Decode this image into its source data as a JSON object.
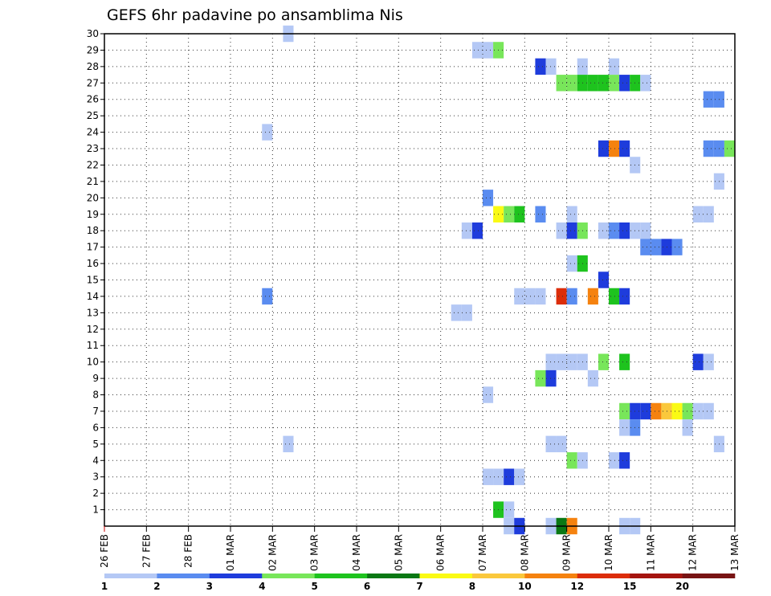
{
  "chart_data": {
    "type": "heatmap",
    "title": "GEFS 6hr padavine po ansamblima Nis",
    "xlabel": "",
    "ylabel": "",
    "x_ticks": [
      "26 FEB",
      "27 FEB",
      "28 FEB",
      "01 MAR",
      "02 MAR",
      "03 MAR",
      "04 MAR",
      "05 MAR",
      "06 MAR",
      "07 MAR",
      "08 MAR",
      "09 MAR",
      "10 MAR",
      "11 MAR",
      "12 MAR",
      "13 MAR"
    ],
    "y_ticks": [
      "1",
      "2",
      "3",
      "4",
      "5",
      "6",
      "7",
      "8",
      "9",
      "10",
      "11",
      "12",
      "13",
      "14",
      "15",
      "16",
      "17",
      "18",
      "19",
      "20",
      "21",
      "22",
      "23",
      "24",
      "25",
      "26",
      "27",
      "28",
      "29",
      "30"
    ],
    "x_range_days": [
      0,
      15
    ],
    "y_range": [
      0,
      30
    ],
    "grid": true,
    "colorbar": {
      "bounds": [
        "1",
        "2",
        "3",
        "4",
        "5",
        "6",
        "7",
        "8",
        "10",
        "12",
        "15",
        "20"
      ],
      "colors": [
        "#b4c8f5",
        "#5a8cf0",
        "#1e3cdc",
        "#78e65a",
        "#1ec31e",
        "#0a7814",
        "#fafa14",
        "#fac83c",
        "#f5820f",
        "#dc2d0a",
        "#a5140f",
        "#781414"
      ]
    },
    "cells": [
      {
        "member": 30,
        "day": 4.25,
        "level": 1
      },
      {
        "member": 29,
        "day": 8.75,
        "level": 1
      },
      {
        "member": 29,
        "day": 9,
        "level": 1
      },
      {
        "member": 29,
        "day": 9.25,
        "level": 4
      },
      {
        "member": 28,
        "day": 10.25,
        "level": 3
      },
      {
        "member": 28,
        "day": 10.5,
        "level": 1
      },
      {
        "member": 28,
        "day": 11.25,
        "level": 1
      },
      {
        "member": 28,
        "day": 12,
        "level": 1
      },
      {
        "member": 27,
        "day": 10.75,
        "level": 4
      },
      {
        "member": 27,
        "day": 11,
        "level": 4
      },
      {
        "member": 27,
        "day": 11.25,
        "level": 5
      },
      {
        "member": 27,
        "day": 11.5,
        "level": 5
      },
      {
        "member": 27,
        "day": 11.75,
        "level": 5
      },
      {
        "member": 27,
        "day": 12,
        "level": 4
      },
      {
        "member": 27,
        "day": 12.25,
        "level": 3
      },
      {
        "member": 27,
        "day": 12.5,
        "level": 5
      },
      {
        "member": 27,
        "day": 12.75,
        "level": 1
      },
      {
        "member": 26,
        "day": 14.25,
        "level": 2
      },
      {
        "member": 26,
        "day": 14.5,
        "level": 2
      },
      {
        "member": 24,
        "day": 3.75,
        "level": 1
      },
      {
        "member": 23,
        "day": 11.75,
        "level": 3
      },
      {
        "member": 23,
        "day": 12,
        "level": 9
      },
      {
        "member": 23,
        "day": 12.25,
        "level": 3
      },
      {
        "member": 23,
        "day": 14.25,
        "level": 2
      },
      {
        "member": 23,
        "day": 14.5,
        "level": 2
      },
      {
        "member": 23,
        "day": 14.75,
        "level": 4
      },
      {
        "member": 22,
        "day": 12.5,
        "level": 1
      },
      {
        "member": 21,
        "day": 14.5,
        "level": 1
      },
      {
        "member": 20,
        "day": 9,
        "level": 2
      },
      {
        "member": 19,
        "day": 9.25,
        "level": 7
      },
      {
        "member": 19,
        "day": 9.5,
        "level": 4
      },
      {
        "member": 19,
        "day": 9.75,
        "level": 5
      },
      {
        "member": 19,
        "day": 10.25,
        "level": 2
      },
      {
        "member": 19,
        "day": 11,
        "level": 1
      },
      {
        "member": 19,
        "day": 14,
        "level": 1
      },
      {
        "member": 19,
        "day": 14.25,
        "level": 1
      },
      {
        "member": 18,
        "day": 8.5,
        "level": 1
      },
      {
        "member": 18,
        "day": 8.75,
        "level": 3
      },
      {
        "member": 18,
        "day": 10.75,
        "level": 1
      },
      {
        "member": 18,
        "day": 11,
        "level": 3
      },
      {
        "member": 18,
        "day": 11.25,
        "level": 4
      },
      {
        "member": 18,
        "day": 11.75,
        "level": 1
      },
      {
        "member": 18,
        "day": 12,
        "level": 2
      },
      {
        "member": 18,
        "day": 12.25,
        "level": 3
      },
      {
        "member": 18,
        "day": 12.5,
        "level": 1
      },
      {
        "member": 18,
        "day": 12.75,
        "level": 1
      },
      {
        "member": 17,
        "day": 12.75,
        "level": 2
      },
      {
        "member": 17,
        "day": 13,
        "level": 2
      },
      {
        "member": 17,
        "day": 13.25,
        "level": 3
      },
      {
        "member": 17,
        "day": 13.5,
        "level": 2
      },
      {
        "member": 16,
        "day": 11,
        "level": 1
      },
      {
        "member": 16,
        "day": 11.25,
        "level": 5
      },
      {
        "member": 15,
        "day": 11.75,
        "level": 3
      },
      {
        "member": 14,
        "day": 3.75,
        "level": 2
      },
      {
        "member": 14,
        "day": 9.75,
        "level": 1
      },
      {
        "member": 14,
        "day": 10,
        "level": 1
      },
      {
        "member": 14,
        "day": 10.25,
        "level": 1
      },
      {
        "member": 14,
        "day": 10.75,
        "level": 10
      },
      {
        "member": 14,
        "day": 11,
        "level": 2
      },
      {
        "member": 14,
        "day": 11.5,
        "level": 9
      },
      {
        "member": 14,
        "day": 12,
        "level": 5
      },
      {
        "member": 14,
        "day": 12.25,
        "level": 3
      },
      {
        "member": 13,
        "day": 8.25,
        "level": 1
      },
      {
        "member": 13,
        "day": 8.5,
        "level": 1
      },
      {
        "member": 10,
        "day": 10.5,
        "level": 1
      },
      {
        "member": 10,
        "day": 10.75,
        "level": 1
      },
      {
        "member": 10,
        "day": 11,
        "level": 1
      },
      {
        "member": 10,
        "day": 11.25,
        "level": 1
      },
      {
        "member": 10,
        "day": 11.75,
        "level": 4
      },
      {
        "member": 10,
        "day": 12.25,
        "level": 5
      },
      {
        "member": 10,
        "day": 14,
        "level": 3
      },
      {
        "member": 10,
        "day": 14.25,
        "level": 1
      },
      {
        "member": 9,
        "day": 10.25,
        "level": 4
      },
      {
        "member": 9,
        "day": 10.5,
        "level": 3
      },
      {
        "member": 9,
        "day": 11.5,
        "level": 1
      },
      {
        "member": 8,
        "day": 9,
        "level": 1
      },
      {
        "member": 7,
        "day": 12.25,
        "level": 4
      },
      {
        "member": 7,
        "day": 12.5,
        "level": 3
      },
      {
        "member": 7,
        "day": 12.75,
        "level": 3
      },
      {
        "member": 7,
        "day": 13,
        "level": 9
      },
      {
        "member": 7,
        "day": 13.25,
        "level": 8
      },
      {
        "member": 7,
        "day": 13.5,
        "level": 7
      },
      {
        "member": 7,
        "day": 13.75,
        "level": 4
      },
      {
        "member": 7,
        "day": 14,
        "level": 1
      },
      {
        "member": 7,
        "day": 14.25,
        "level": 1
      },
      {
        "member": 6,
        "day": 12.25,
        "level": 1
      },
      {
        "member": 6,
        "day": 12.5,
        "level": 2
      },
      {
        "member": 6,
        "day": 13.75,
        "level": 1
      },
      {
        "member": 5,
        "day": 4.25,
        "level": 1
      },
      {
        "member": 5,
        "day": 10.5,
        "level": 1
      },
      {
        "member": 5,
        "day": 10.75,
        "level": 1
      },
      {
        "member": 5,
        "day": 14.5,
        "level": 1
      },
      {
        "member": 4,
        "day": 11,
        "level": 4
      },
      {
        "member": 4,
        "day": 11.25,
        "level": 1
      },
      {
        "member": 4,
        "day": 12,
        "level": 1
      },
      {
        "member": 4,
        "day": 12.25,
        "level": 3
      },
      {
        "member": 3,
        "day": 9,
        "level": 1
      },
      {
        "member": 3,
        "day": 9.25,
        "level": 1
      },
      {
        "member": 3,
        "day": 9.5,
        "level": 3
      },
      {
        "member": 3,
        "day": 9.75,
        "level": 1
      },
      {
        "member": 1,
        "day": 9.25,
        "level": 5
      },
      {
        "member": 1,
        "day": 9.5,
        "level": 1
      },
      {
        "member": 0,
        "day": 9.5,
        "level": 1
      },
      {
        "member": 0,
        "day": 9.75,
        "level": 3
      },
      {
        "member": 0,
        "day": 10.5,
        "level": 1
      },
      {
        "member": 0,
        "day": 10.75,
        "level": 6
      },
      {
        "member": 0,
        "day": 11,
        "level": 9
      },
      {
        "member": 0,
        "day": 12.25,
        "level": 1
      },
      {
        "member": 0,
        "day": 12.5,
        "level": 1
      }
    ]
  }
}
